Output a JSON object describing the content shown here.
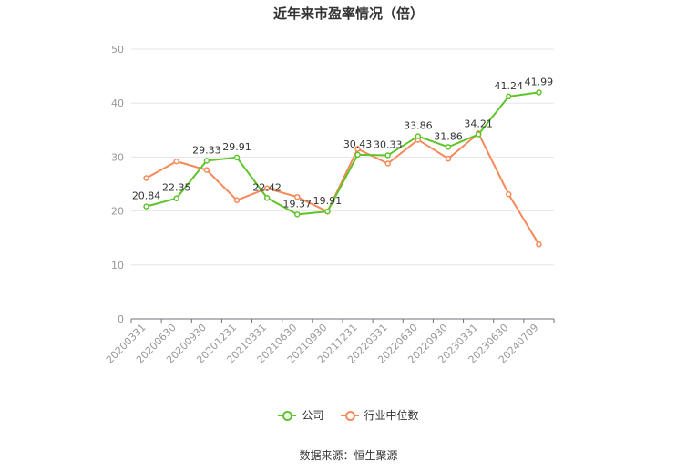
{
  "title": "近年来市盈率情况（倍）",
  "source": "数据来源：恒生聚源",
  "colors": {
    "company": "#5fc42a",
    "industry": "#f5895a",
    "grid": "#e6e6e6",
    "axis": "#999999",
    "text": "#333333"
  },
  "chart_data": {
    "type": "line",
    "title": "近年来市盈率情况（倍）",
    "categories": [
      "20200331",
      "20200630",
      "20200930",
      "20201231",
      "20210331",
      "20210630",
      "20210930",
      "20211231",
      "20220331",
      "20220630",
      "20220930",
      "20230331",
      "20230630",
      "20240709"
    ],
    "ylim": [
      0,
      50
    ],
    "yticks": [
      0,
      10,
      20,
      30,
      40,
      50
    ],
    "grid": true,
    "legend": "bottom",
    "series": [
      {
        "name": "公司",
        "color": "#5fc42a",
        "show_labels": true,
        "labels": [
          "20.84",
          "22.35",
          "29.33",
          "29.91",
          "22.42",
          "19.37",
          "19.91",
          "30.43",
          "30.33",
          "33.86",
          "31.86",
          "34.21",
          "41.24",
          "41.99"
        ],
        "values": [
          20.84,
          22.35,
          29.33,
          29.91,
          22.42,
          19.37,
          19.91,
          30.43,
          30.33,
          33.86,
          31.86,
          34.21,
          41.24,
          41.99
        ]
      },
      {
        "name": "行业中位数",
        "color": "#f5895a",
        "show_labels": false,
        "values": [
          26.1,
          29.2,
          27.6,
          22.0,
          24.2,
          22.6,
          19.9,
          31.5,
          28.8,
          33.2,
          29.7,
          34.4,
          23.1,
          13.8
        ]
      }
    ]
  }
}
